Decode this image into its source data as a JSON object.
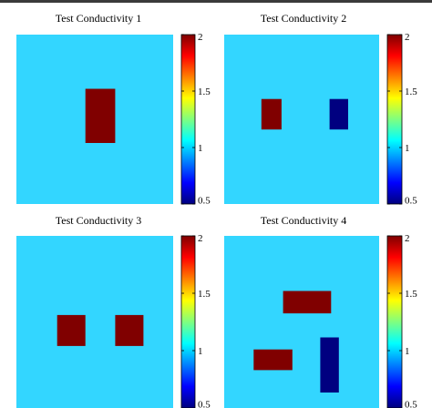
{
  "colormap": "jet",
  "background_color": "#33d6ff",
  "chart_data": [
    {
      "type": "heatmap",
      "title": "Test Conductivity 1",
      "clim": [
        0.5,
        2
      ],
      "colorbar_ticks": [
        "2",
        "1.5",
        "1",
        "0.5"
      ],
      "background_value": 1,
      "inclusions": [
        {
          "x": [
            0.44,
            0.63
          ],
          "y": [
            0.32,
            0.64
          ],
          "value": 2
        }
      ]
    },
    {
      "type": "heatmap",
      "title": "Test Conductivity 2",
      "clim": [
        0.5,
        2
      ],
      "colorbar_ticks": [
        "2",
        "1.5",
        "1",
        "0.5"
      ],
      "background_value": 1,
      "inclusions": [
        {
          "x": [
            0.24,
            0.37
          ],
          "y": [
            0.38,
            0.56
          ],
          "value": 2
        },
        {
          "x": [
            0.68,
            0.8
          ],
          "y": [
            0.38,
            0.56
          ],
          "value": 0.5
        }
      ]
    },
    {
      "type": "heatmap",
      "title": "Test Conductivity 3",
      "clim": [
        0.5,
        2
      ],
      "colorbar_ticks": [
        "2",
        "1.5",
        "1",
        "0.5"
      ],
      "background_value": 1,
      "inclusions": [
        {
          "x": [
            0.26,
            0.44
          ],
          "y": [
            0.46,
            0.64
          ],
          "value": 2
        },
        {
          "x": [
            0.63,
            0.81
          ],
          "y": [
            0.46,
            0.64
          ],
          "value": 2
        }
      ]
    },
    {
      "type": "heatmap",
      "title": "Test Conductivity 4",
      "clim": [
        0.5,
        2
      ],
      "colorbar_ticks": [
        "2",
        "1.5",
        "1",
        "0.5"
      ],
      "background_value": 1,
      "inclusions": [
        {
          "x": [
            0.38,
            0.69
          ],
          "y": [
            0.32,
            0.45
          ],
          "value": 2
        },
        {
          "x": [
            0.19,
            0.44
          ],
          "y": [
            0.66,
            0.78
          ],
          "value": 2
        },
        {
          "x": [
            0.62,
            0.74
          ],
          "y": [
            0.59,
            0.91
          ],
          "value": 0.5
        }
      ]
    }
  ]
}
